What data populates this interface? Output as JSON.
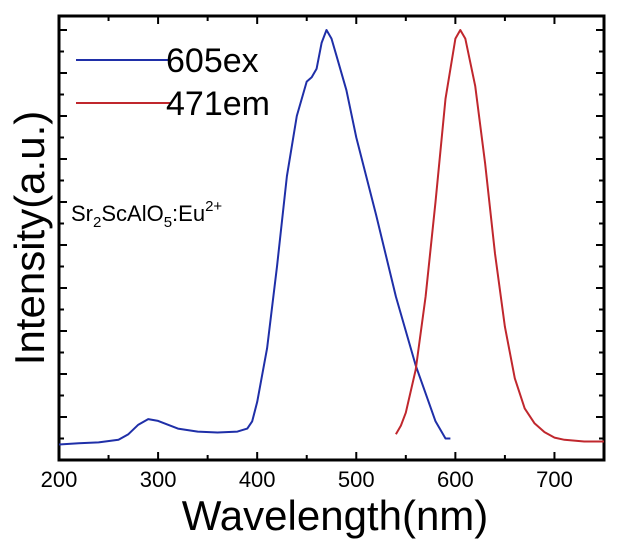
{
  "chart_data": {
    "type": "line",
    "xlabel": "Wavelength(nm)",
    "ylabel": "Intensity(a.u.)",
    "xlim": [
      200,
      750
    ],
    "ylim": [
      0,
      1.0
    ],
    "x_ticks": [
      200,
      300,
      400,
      500,
      600,
      700
    ],
    "y_ticks_labeled": false,
    "grid": false,
    "legend_position": "top-left",
    "annotation": {
      "base": "Sr",
      "sub1": "2",
      "mid1": "ScAlO",
      "sub2": "5",
      "mid2": ":Eu",
      "sup": "2+"
    },
    "series": [
      {
        "name": "605ex",
        "color": "#1f2fa8",
        "x": [
          200,
          220,
          240,
          260,
          270,
          280,
          290,
          300,
          320,
          340,
          360,
          380,
          390,
          395,
          400,
          410,
          420,
          430,
          440,
          450,
          455,
          460,
          465,
          470,
          475,
          480,
          490,
          500,
          520,
          540,
          560,
          580,
          590,
          595
        ],
        "y": [
          0.036,
          0.039,
          0.041,
          0.047,
          0.06,
          0.082,
          0.095,
          0.091,
          0.073,
          0.066,
          0.064,
          0.066,
          0.073,
          0.09,
          0.135,
          0.26,
          0.45,
          0.66,
          0.8,
          0.88,
          0.89,
          0.91,
          0.97,
          1.0,
          0.98,
          0.94,
          0.86,
          0.75,
          0.57,
          0.38,
          0.22,
          0.09,
          0.05,
          0.05
        ]
      },
      {
        "name": "471em",
        "color": "#c0272d",
        "x": [
          540,
          545,
          550,
          560,
          570,
          580,
          590,
          600,
          605,
          610,
          620,
          630,
          640,
          650,
          660,
          670,
          680,
          690,
          700,
          710,
          720,
          730,
          740,
          750
        ],
        "y": [
          0.06,
          0.08,
          0.11,
          0.21,
          0.38,
          0.6,
          0.84,
          0.98,
          1.0,
          0.98,
          0.87,
          0.69,
          0.48,
          0.31,
          0.19,
          0.12,
          0.085,
          0.065,
          0.052,
          0.047,
          0.045,
          0.043,
          0.043,
          0.043
        ]
      }
    ]
  }
}
